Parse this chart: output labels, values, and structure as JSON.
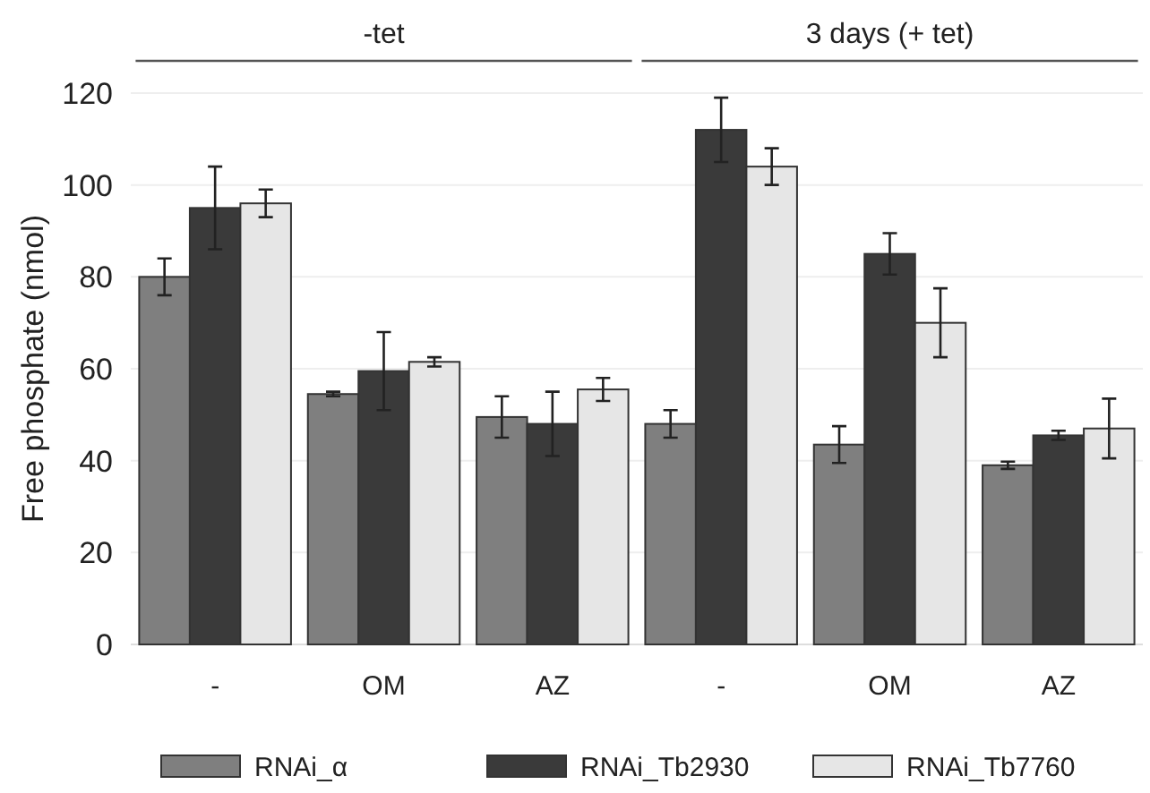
{
  "chart_data": {
    "type": "bar",
    "ylabel": "Free phosphate (nmol)",
    "categories": [
      "-",
      "OM",
      "AZ",
      "-",
      "OM",
      "AZ"
    ],
    "series": [
      {
        "name": "RNAi_α",
        "color": "#7f7f7f",
        "values": [
          80,
          54.5,
          49.5,
          48,
          43.5,
          39
        ],
        "errors": [
          4,
          0.5,
          4.5,
          3,
          4,
          0.8
        ]
      },
      {
        "name": "RNAi_Tb2930",
        "color": "#3a3a3a",
        "values": [
          95,
          59.5,
          48,
          112,
          85,
          45.5
        ],
        "errors": [
          9,
          8.5,
          7,
          7,
          4.5,
          1
        ]
      },
      {
        "name": "RNAi_Tb7760",
        "color": "#e6e6e6",
        "values": [
          96,
          61.5,
          55.5,
          104,
          70,
          47
        ],
        "errors": [
          3,
          1,
          2.5,
          4,
          7.5,
          6.5
        ]
      }
    ],
    "annotations": [
      "-tet",
      "3 days (+ tet)"
    ],
    "ylim": [
      0,
      120
    ],
    "yticks": [
      0,
      20,
      40,
      60,
      80,
      100,
      120
    ],
    "grid": "y",
    "legend": "bottom"
  }
}
